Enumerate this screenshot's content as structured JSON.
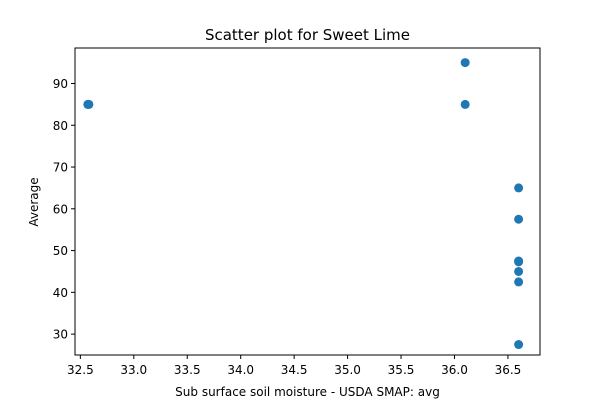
{
  "chart_data": {
    "type": "scatter",
    "title": "Scatter plot for Sweet Lime",
    "xlabel": "Sub surface soil moisture - USDA SMAP: avg",
    "ylabel": "Average",
    "xlim": [
      32.45,
      36.8
    ],
    "ylim": [
      25,
      98.5
    ],
    "xticks": [
      32.5,
      33.0,
      33.5,
      34.0,
      34.5,
      35.0,
      35.5,
      36.0,
      36.5
    ],
    "xtick_labels": [
      "32.5",
      "33.0",
      "33.5",
      "34.0",
      "34.5",
      "35.0",
      "35.5",
      "36.0",
      "36.5"
    ],
    "yticks": [
      30,
      40,
      50,
      60,
      70,
      80,
      90
    ],
    "ytick_labels": [
      "30",
      "40",
      "50",
      "60",
      "70",
      "80",
      "90"
    ],
    "grid": false,
    "marker_color": "#1f77b4",
    "points": [
      {
        "x": 32.57,
        "y": 85
      },
      {
        "x": 32.58,
        "y": 85
      },
      {
        "x": 36.1,
        "y": 95
      },
      {
        "x": 36.1,
        "y": 85
      },
      {
        "x": 36.6,
        "y": 65
      },
      {
        "x": 36.6,
        "y": 57.5
      },
      {
        "x": 36.6,
        "y": 47.5
      },
      {
        "x": 36.6,
        "y": 47.3
      },
      {
        "x": 36.6,
        "y": 45
      },
      {
        "x": 36.6,
        "y": 42.5
      },
      {
        "x": 36.6,
        "y": 27.5
      }
    ]
  }
}
